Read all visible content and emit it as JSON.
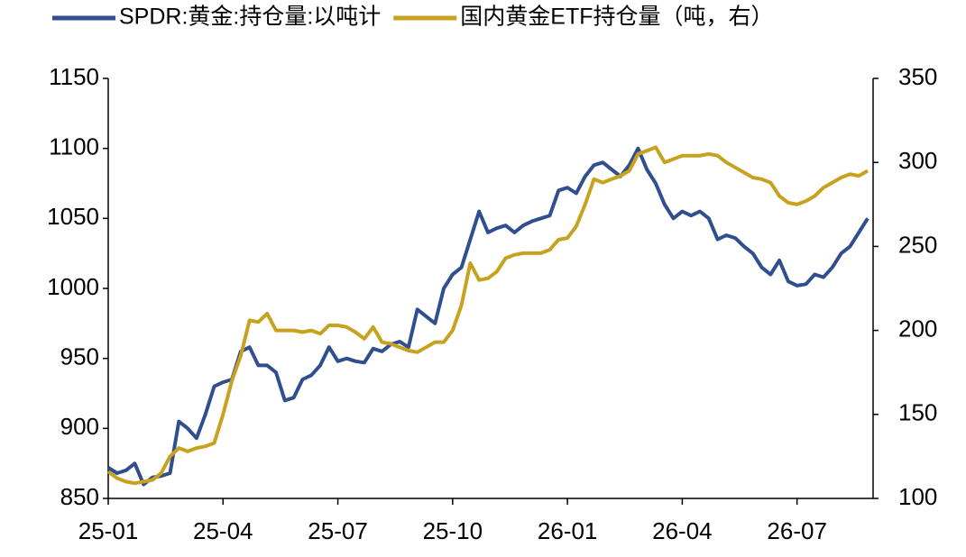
{
  "chart_data": {
    "type": "line",
    "categories": [
      "25-01",
      null,
      null,
      null,
      null,
      null,
      null,
      null,
      null,
      null,
      null,
      null,
      null,
      "25-04",
      null,
      null,
      null,
      null,
      null,
      null,
      null,
      null,
      null,
      null,
      null,
      null,
      "25-07",
      null,
      null,
      null,
      null,
      null,
      null,
      null,
      null,
      null,
      null,
      null,
      null,
      "25-10",
      null,
      null,
      null,
      null,
      null,
      null,
      null,
      null,
      null,
      null,
      null,
      null,
      "26-01",
      null,
      null,
      null,
      null,
      null,
      null,
      null,
      null,
      null,
      null,
      null,
      null,
      "26-04",
      null,
      null,
      null,
      null,
      null,
      null,
      null,
      null,
      null,
      null,
      null,
      null,
      "26-07",
      null,
      null,
      null,
      null,
      null,
      null,
      null,
      null
    ],
    "series": [
      {
        "name": "SPDR:黄金:持仓量:以吨计",
        "color": "#2f4f8f",
        "values": [
          872,
          868,
          870,
          875,
          860,
          865,
          866,
          868,
          905,
          900,
          893,
          910,
          930,
          933,
          935,
          955,
          958,
          945,
          945,
          940,
          920,
          922,
          935,
          938,
          945,
          958,
          948,
          950,
          948,
          947,
          957,
          955,
          960,
          962,
          958,
          985,
          980,
          975,
          1000,
          1010,
          1015,
          1035,
          1055,
          1040,
          1043,
          1045,
          1040,
          1045,
          1048,
          1050,
          1052,
          1070,
          1072,
          1068,
          1080,
          1088,
          1090,
          1085,
          1080,
          1088,
          1100,
          1085,
          1075,
          1060,
          1050,
          1055,
          1052,
          1055,
          1050,
          1035,
          1038,
          1036,
          1030,
          1025,
          1015,
          1010,
          1020,
          1005,
          1002,
          1003,
          1010,
          1008,
          1015,
          1025,
          1030,
          1040,
          1050
        ]
      },
      {
        "name": "国内黄金ETF持仓量（吨，右）",
        "color": "#c7a21f",
        "axis": "y2",
        "values": [
          116,
          112,
          110,
          109,
          110,
          111,
          115,
          125,
          130,
          128,
          130,
          131,
          133,
          150,
          170,
          185,
          206,
          205,
          210,
          200,
          200,
          200,
          199,
          200,
          198,
          203,
          203,
          202,
          199,
          195,
          202,
          193,
          192,
          190,
          188,
          187,
          190,
          193,
          193,
          200,
          215,
          240,
          230,
          231,
          235,
          243,
          245,
          246,
          246,
          246,
          248,
          254,
          255,
          262,
          275,
          290,
          288,
          290,
          292,
          295,
          305,
          307,
          309,
          300,
          302,
          304,
          304,
          304,
          305,
          304,
          300,
          297,
          294,
          291,
          290,
          288,
          280,
          276,
          275,
          277,
          280,
          285,
          288,
          291,
          293,
          292,
          295
        ]
      }
    ],
    "ylim": [
      850,
      1150
    ],
    "yticks": [
      850,
      900,
      950,
      1000,
      1050,
      1100,
      1150
    ],
    "y2lim": [
      100,
      350
    ],
    "y2ticks": [
      100,
      150,
      200,
      250,
      300,
      350
    ],
    "grid": false,
    "legend": "top"
  }
}
